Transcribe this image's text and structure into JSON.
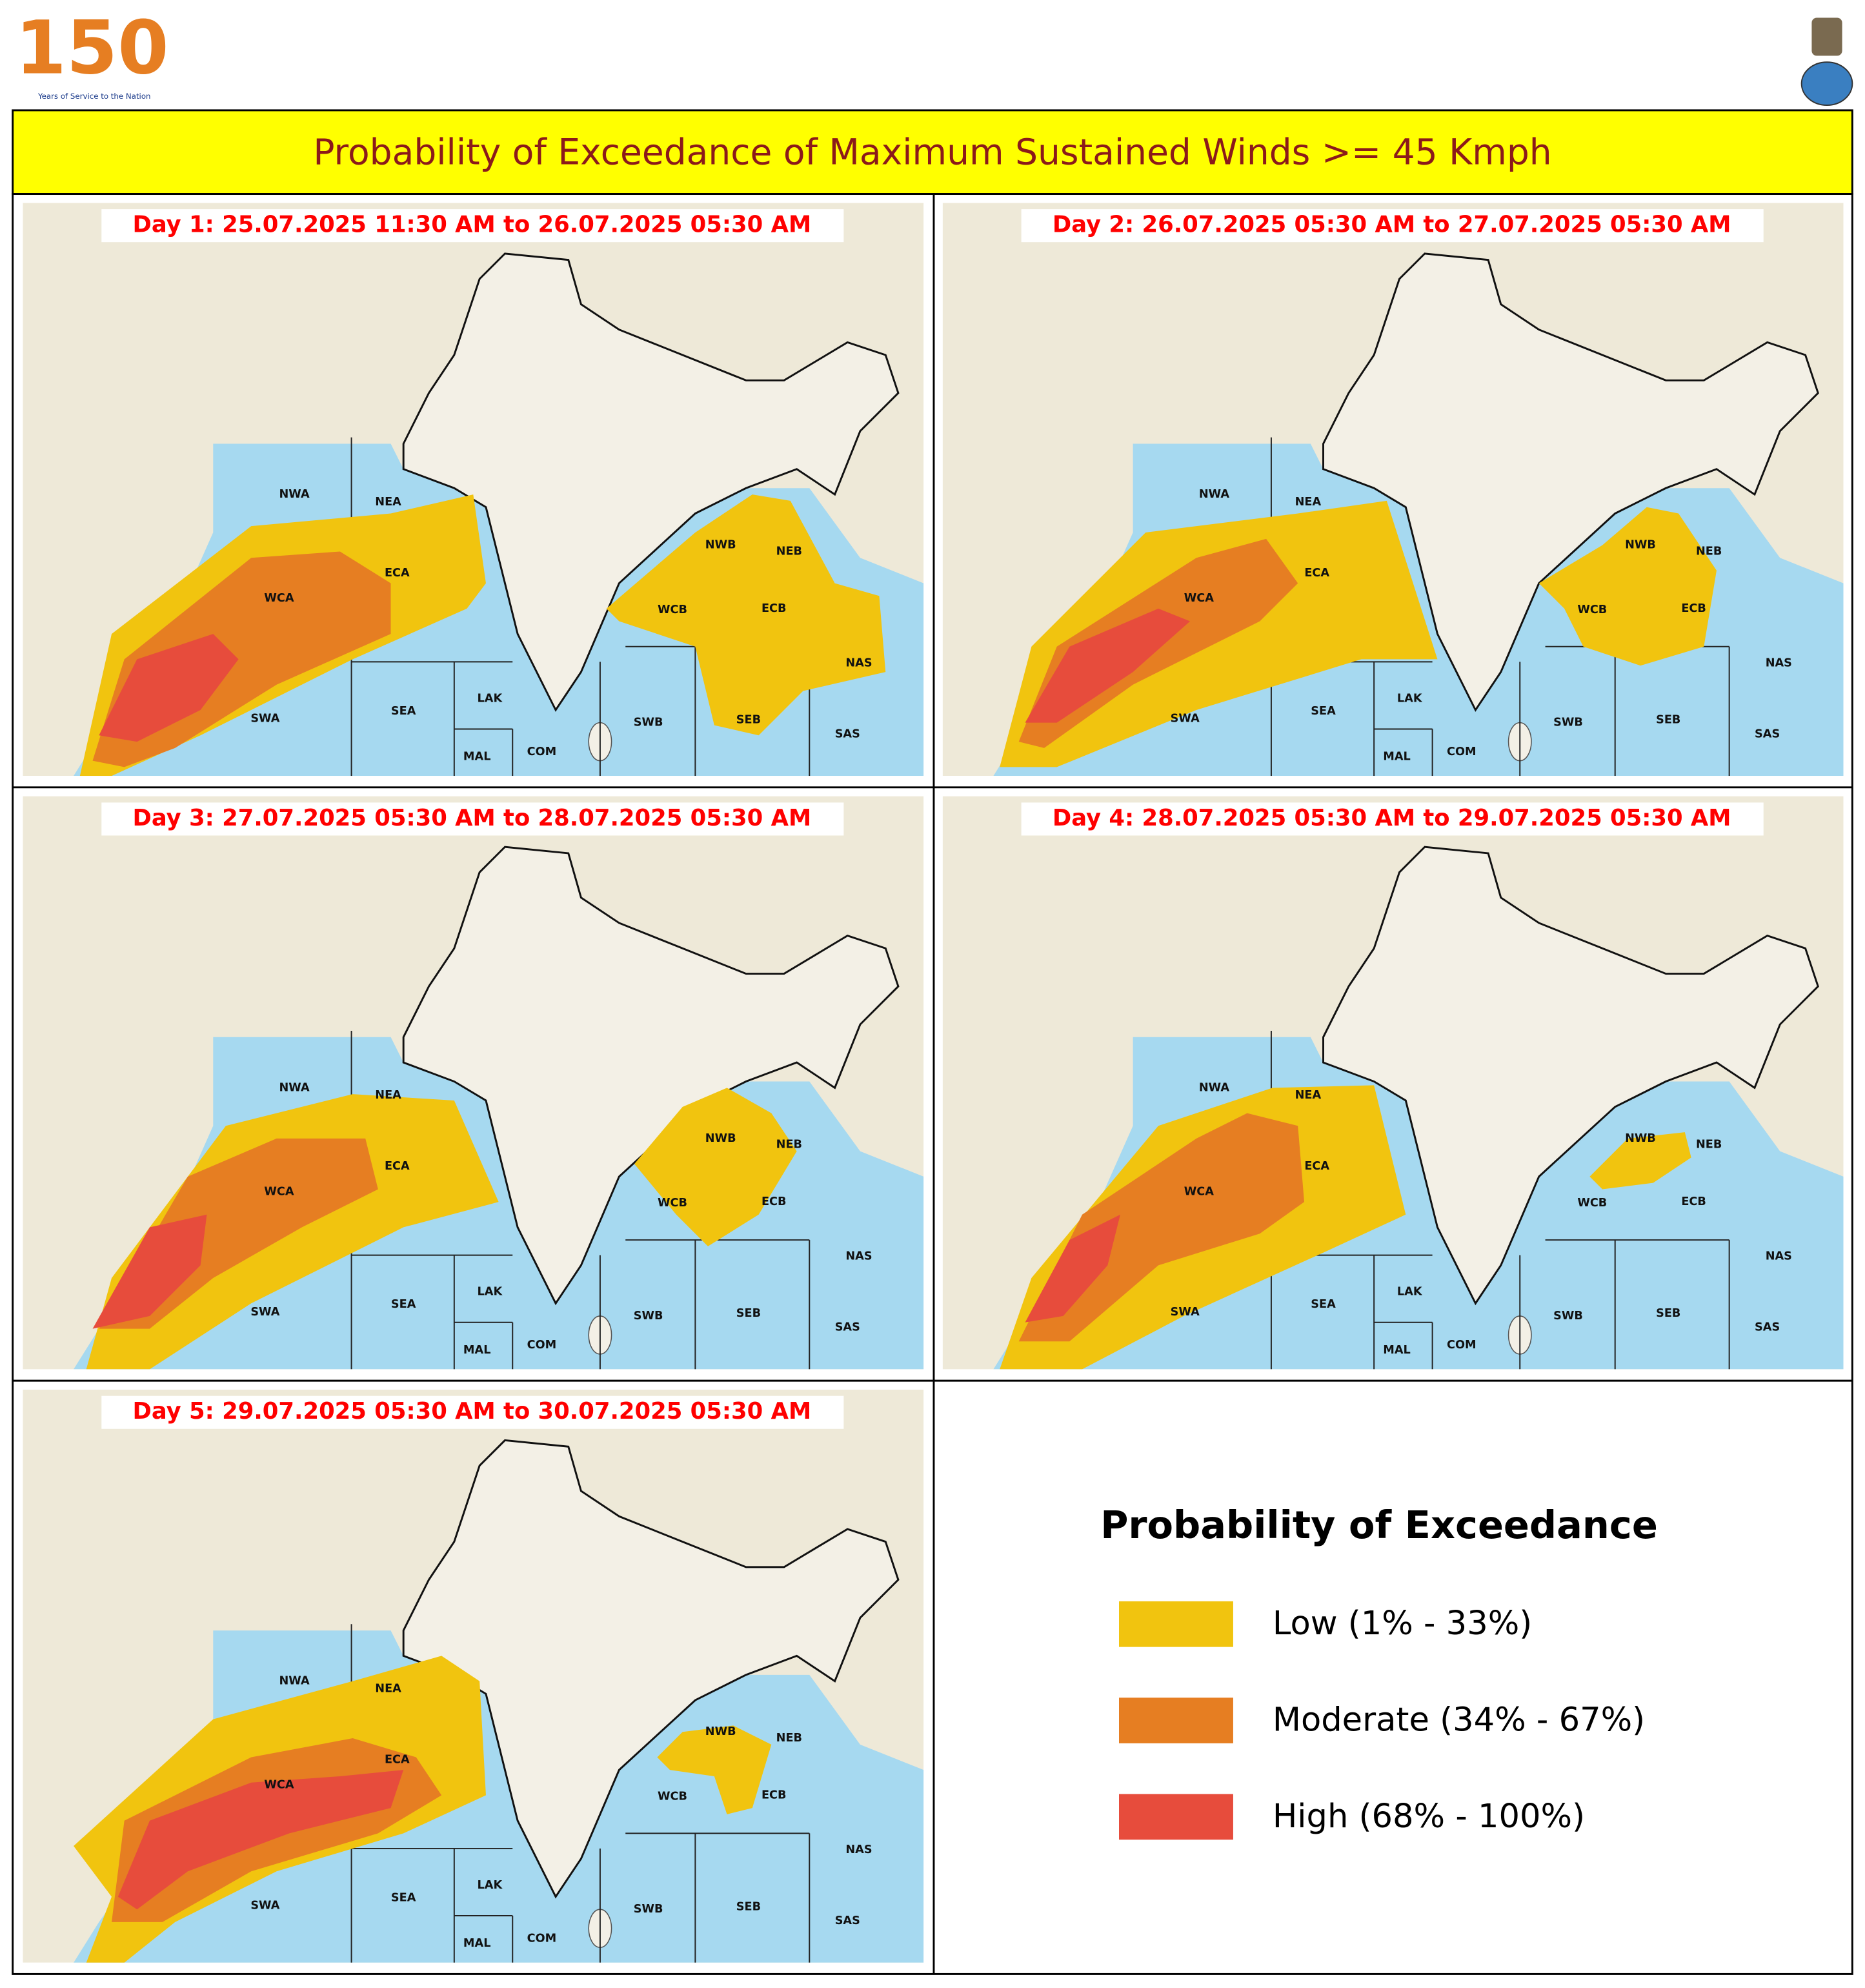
{
  "header": {
    "logo_number": "150",
    "logo_text": "Years of Service to the Nation",
    "title": "Probability of Exceedance of Maximum Sustained Winds >= 45 Kmph"
  },
  "regions": [
    "NWA",
    "NEA",
    "ECA",
    "WCA",
    "SWA",
    "SEA",
    "LAK",
    "MAL",
    "COM",
    "SWB",
    "SEB",
    "NAS",
    "SAS",
    "NWB",
    "NEB",
    "WCB",
    "ECB"
  ],
  "panels": [
    {
      "title": "Day 1: 25.07.2025 11:30 AM to 26.07.2025 05:30 AM"
    },
    {
      "title": "Day 2: 26.07.2025 05:30 AM to 27.07.2025 05:30 AM"
    },
    {
      "title": "Day 3: 27.07.2025 05:30 AM to 28.07.2025 05:30 AM"
    },
    {
      "title": "Day 4: 28.07.2025 05:30 AM to 29.07.2025 05:30 AM"
    },
    {
      "title": "Day 5: 29.07.2025 05:30 AM to 30.07.2025 05:30 AM"
    }
  ],
  "legend": {
    "title": "Probability of Exceedance",
    "items": [
      {
        "label": "Low (1% - 33%)",
        "color": "#f1c40f"
      },
      {
        "label": "Moderate (34% - 67%)",
        "color": "#e67e22"
      },
      {
        "label": "High (68% - 100%)",
        "color": "#e74c3c"
      }
    ]
  }
}
